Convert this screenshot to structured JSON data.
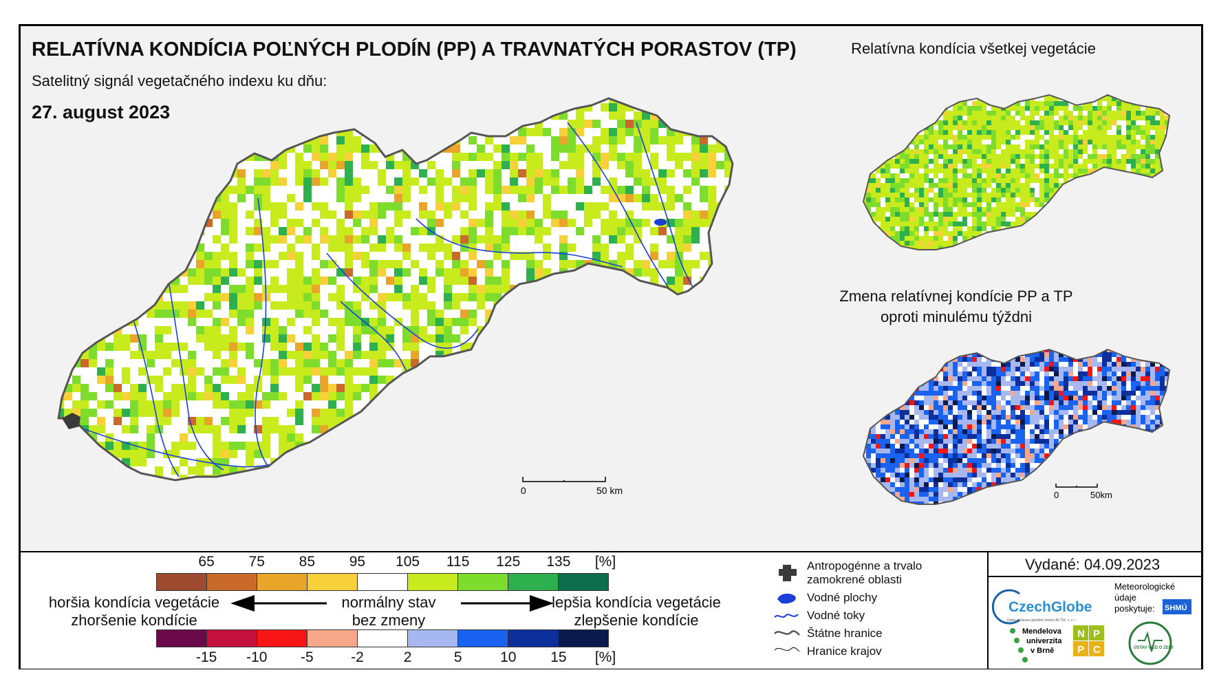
{
  "title": "RELATÍVNA KONDÍCIA POĽNÝCH PLODÍN (PP) A TRAVNATÝCH PORASTOV (TP)",
  "subtitle": "Satelitný signál vegetačného indexu ku dňu:",
  "date": "27. august 2023",
  "inset_top_title": "Relatívna kondícia všetkej vegetácie",
  "inset_bottom_title_line1": "Zmena relatívnej kondície PP a TP",
  "inset_bottom_title_line2": "oproti minulému týždni",
  "scalebar_main": {
    "zero": "0",
    "end": "50 km"
  },
  "scalebar_inset": {
    "zero": "0",
    "end": "50km"
  },
  "condition_scale": {
    "ticks": [
      "65",
      "75",
      "85",
      "95",
      "105",
      "115",
      "125",
      "135"
    ],
    "unit": "[%]",
    "colors": [
      "#9e4a30",
      "#c9692a",
      "#e8a52a",
      "#f7d03a",
      "#ffffff",
      "#c8eb1e",
      "#7ddc2c",
      "#2fb04e",
      "#0d6e4e"
    ]
  },
  "change_scale": {
    "ticks": [
      "-15",
      "-10",
      "-5",
      "-2",
      "2",
      "5",
      "10",
      "15"
    ],
    "unit": "[%]",
    "colors": [
      "#6b0a4a",
      "#c4103c",
      "#f51515",
      "#f8a88a",
      "#ffffff",
      "#a7b8f0",
      "#1a62f0",
      "#0c2f9c",
      "#0a1a4d"
    ]
  },
  "legend_left_line1": "horšia kondícia vegetácie",
  "legend_left_line2": "zhoršenie kondície",
  "legend_center_line1": "normálny stav",
  "legend_center_line2": "bez zmeny",
  "legend_right_line1": "lepšia kondícia vegetácie",
  "legend_right_line2": "zlepšenie kondície",
  "map_legend": [
    {
      "icon": "anthropogenic-area-icon",
      "label_line1": "Antropogénne a trvalo",
      "label_line2": "zamokrené oblasti"
    },
    {
      "icon": "water-body-icon",
      "label_line1": "Vodné plochy",
      "label_line2": ""
    },
    {
      "icon": "water-stream-icon",
      "label_line1": "Vodné toky",
      "label_line2": ""
    },
    {
      "icon": "state-border-icon",
      "label_line1": "Štátne hranice",
      "label_line2": ""
    },
    {
      "icon": "region-border-icon",
      "label_line1": "Hranice krajov",
      "label_line2": ""
    }
  ],
  "issued": "Vydané: 04.09.2023",
  "logos": {
    "czechglobe": "CzechGlobe",
    "czechglobe_sub": "Ústav výzkumu globální změny AV ČR, v. v. i.",
    "met_data_line1": "Meteorologické",
    "met_data_line2": "údaje",
    "met_data_line3": "poskytuje:",
    "shmu": "SHMÚ",
    "mendel_line1": "Mendelova",
    "mendel_line2": "univerzita",
    "mendel_line3": "v Brně",
    "nppc_letters": [
      "N",
      "P",
      "P",
      "C"
    ],
    "uvz": "ÚSTAV VIED O ZEMI"
  },
  "colors": {
    "map_white": "#ffffff",
    "border": "#555555",
    "river": "#1a3fd6",
    "urban": "#3a3a3a"
  }
}
